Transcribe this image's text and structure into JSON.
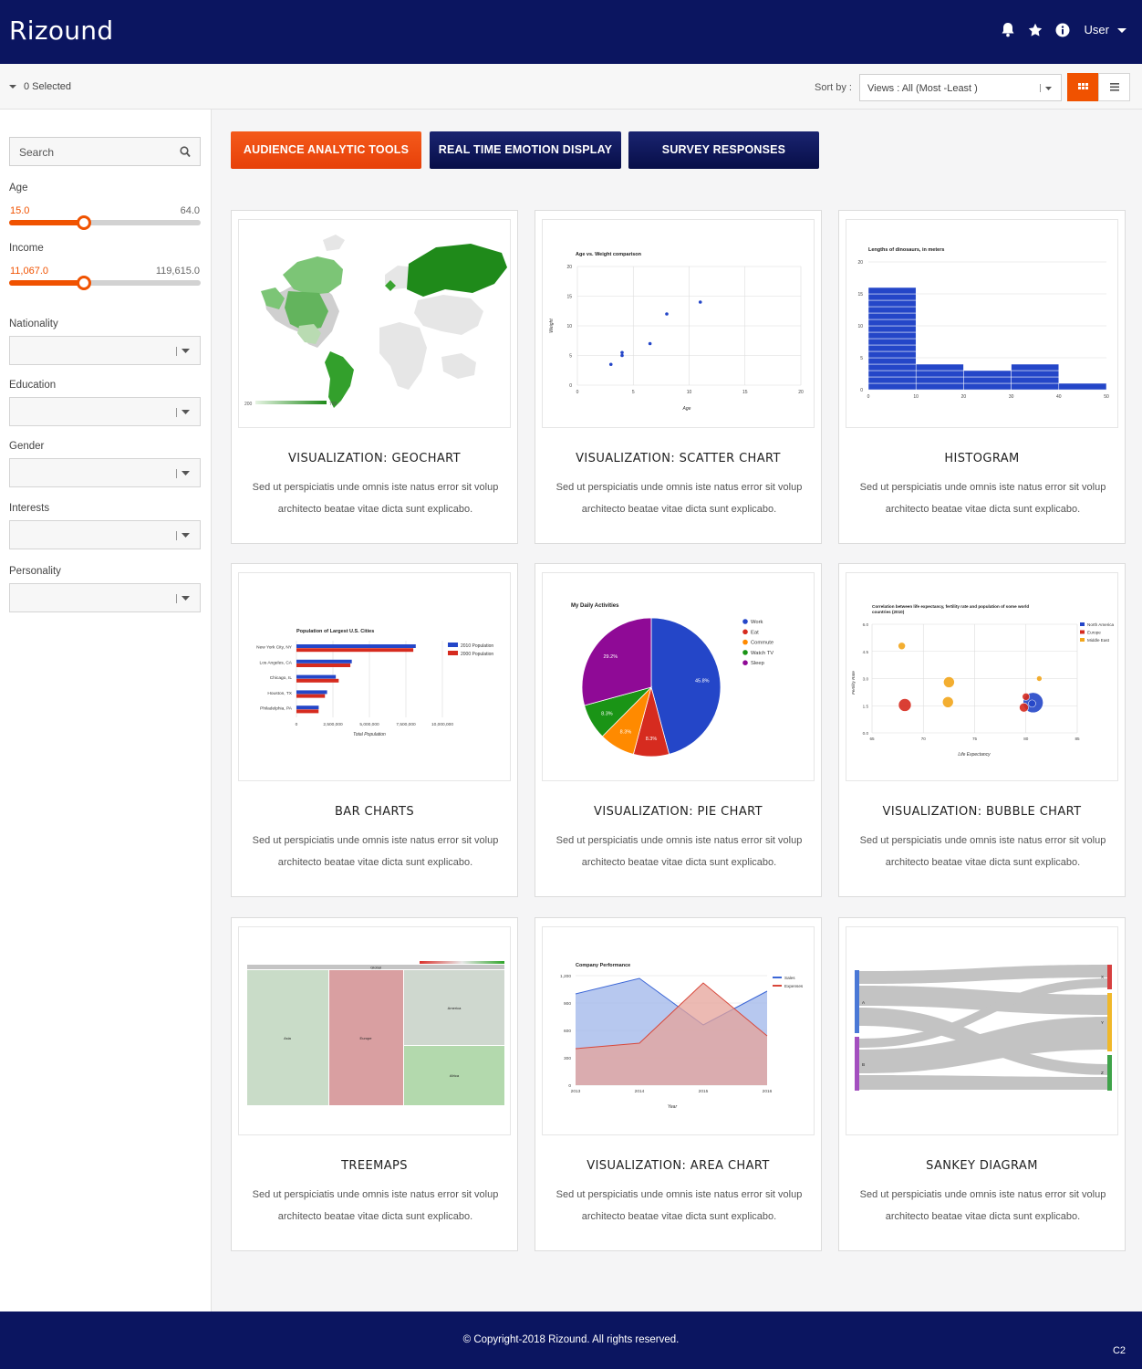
{
  "header": {
    "logo": "Rizound",
    "user_label": "User"
  },
  "toolbar": {
    "selected": "0 Selected",
    "sort_label": "Sort by :",
    "sort_value": "Views : All (Most -Least )"
  },
  "sidebar": {
    "search_placeholder": "Search",
    "age": {
      "label": "Age",
      "min": "15.0",
      "max": "64.0",
      "level": 0.39
    },
    "income": {
      "label": "Income",
      "min": "11,067.0",
      "max": "119,615.0",
      "level": 0.39
    },
    "filters": [
      {
        "label": "Nationality"
      },
      {
        "label": "Education"
      },
      {
        "label": "Gender"
      },
      {
        "label": "Interests"
      },
      {
        "label": "Personality"
      }
    ]
  },
  "tabs": [
    {
      "label": "AUDIENCE ANALYTIC TOOLS"
    },
    {
      "label": "REAL TIME EMOTION DISPLAY"
    },
    {
      "label": "SURVEY RESPONSES"
    }
  ],
  "cards": [
    {
      "title": "VISUALIZATION: GEOCHART",
      "desc": "Sed ut perspiciatis unde omnis iste natus error sit volup architecto beatae vitae dicta sunt explicabo."
    },
    {
      "title": "VISUALIZATION: SCATTER CHART",
      "desc": "Sed ut perspiciatis unde omnis iste natus error sit volup architecto beatae vitae dicta sunt explicabo."
    },
    {
      "title": "HISTOGRAM",
      "desc": "Sed ut perspiciatis unde omnis iste natus error sit volup architecto beatae vitae dicta sunt explicabo."
    },
    {
      "title": "BAR CHARTS",
      "desc": "Sed ut perspiciatis unde omnis iste natus error sit volup architecto beatae vitae dicta sunt explicabo."
    },
    {
      "title": "VISUALIZATION: PIE CHART",
      "desc": "Sed ut perspiciatis unde omnis iste natus error sit volup architecto beatae vitae dicta sunt explicabo."
    },
    {
      "title": "VISUALIZATION: BUBBLE CHART",
      "desc": "Sed ut perspiciatis unde omnis iste natus error sit volup architecto beatae vitae dicta sunt explicabo."
    },
    {
      "title": "TREEMAPS",
      "desc": "Sed ut perspiciatis unde omnis iste natus error sit volup architecto beatae vitae dicta sunt explicabo."
    },
    {
      "title": "VISUALIZATION: AREA CHART",
      "desc": "Sed ut perspiciatis unde omnis iste natus error sit volup architecto beatae vitae dicta sunt explicabo."
    },
    {
      "title": "SANKEY DIAGRAM",
      "desc": "Sed ut perspiciatis unde omnis iste natus error sit volup architecto beatae vitae dicta sunt explicabo."
    }
  ],
  "thumbs": {
    "geo": {
      "legend_min": "200",
      "legend_max": "700"
    },
    "scatter": {
      "title": "Age vs. Weight comparison",
      "xlabel": "Age",
      "ylabel": "Weight",
      "xticks": [
        "0",
        "5",
        "10",
        "15",
        "20"
      ],
      "yticks": [
        "0",
        "5",
        "10",
        "15",
        "20"
      ],
      "xlim": [
        0,
        20
      ],
      "ylim": [
        0,
        20
      ],
      "points": [
        [
          3,
          3.5
        ],
        [
          4,
          5
        ],
        [
          4,
          5.5
        ],
        [
          6.5,
          7
        ],
        [
          8,
          12
        ],
        [
          11,
          14
        ]
      ]
    },
    "hist": {
      "title": "Lengths of dinosaurs, in meters",
      "xticks": [
        "0",
        "10",
        "20",
        "30",
        "40",
        "50"
      ],
      "yticks": [
        "0",
        "5",
        "10",
        "15",
        "20"
      ],
      "bins": [
        [
          0,
          10,
          16
        ],
        [
          10,
          20,
          4
        ],
        [
          20,
          30,
          3
        ],
        [
          30,
          40,
          4
        ],
        [
          40,
          50,
          1
        ]
      ]
    },
    "bar": {
      "title": "Population of Largest U.S. Cities",
      "xlabel": "Total Population",
      "categories": [
        "New York City, NY",
        "Los Angeles, CA",
        "Chicago, IL",
        "Houston, TX",
        "Philadelphia, PA"
      ],
      "xticks": [
        "0",
        "2,500,000",
        "5,000,000",
        "7,500,000",
        "10,000,000"
      ],
      "xmax": 10000000,
      "series": [
        {
          "name": "2010 Population",
          "values": [
            8175000,
            3792000,
            2695000,
            2099000,
            1526000
          ]
        },
        {
          "name": "2000 Population",
          "values": [
            8008000,
            3694000,
            2896000,
            1953000,
            1517000
          ]
        }
      ]
    },
    "pie": {
      "title": "My Daily Activities",
      "slices": [
        {
          "label": "Work",
          "value": 45.8,
          "text": "45.8%"
        },
        {
          "label": "Eat",
          "value": 8.3,
          "text": "8.3%"
        },
        {
          "label": "Commute",
          "value": 8.3,
          "text": "8.3%"
        },
        {
          "label": "Watch TV",
          "value": 8.3,
          "text": "8.3%"
        },
        {
          "label": "Sleep",
          "value": 29.2,
          "text": "29.2%"
        }
      ]
    },
    "bubble": {
      "title1": "Correlation between life expectancy, fertility rate and population of some world",
      "title2": "countries (2010)",
      "xlabel": "Life Expectancy",
      "ylabel": "Fertility Rate",
      "xticks": [
        "65",
        "70",
        "75",
        "80",
        "85"
      ],
      "yticks": [
        "0.0",
        "1.5",
        "3.0",
        "4.5",
        "6.0"
      ],
      "legend": [
        "North America",
        "Europe",
        "Middle East"
      ],
      "bubbles": [
        {
          "label": "",
          "x": 80.7,
          "y": 1.67,
          "r": 11,
          "region": 0
        },
        {
          "label": "",
          "x": 68.2,
          "y": 1.54,
          "r": 7,
          "region": 1
        },
        {
          "label": "",
          "x": 80.0,
          "y": 2.0,
          "r": 4,
          "region": 1
        },
        {
          "label": "",
          "x": 79.8,
          "y": 1.4,
          "r": 5,
          "region": 1
        },
        {
          "label": "",
          "x": 81.3,
          "y": 3.0,
          "r": 3,
          "region": 2
        },
        {
          "label": "",
          "x": 67.9,
          "y": 4.8,
          "r": 4,
          "region": 2
        },
        {
          "label": "",
          "x": 72.5,
          "y": 2.8,
          "r": 6,
          "region": 2
        },
        {
          "label": "",
          "x": 72.4,
          "y": 1.7,
          "r": 6,
          "region": 2
        },
        {
          "label": "",
          "x": 80.6,
          "y": 1.62,
          "r": 4,
          "region": 0
        }
      ]
    },
    "treemap": {
      "header": "Global",
      "regions": [
        "Asia",
        "Europe",
        "America",
        "Africa"
      ]
    },
    "area": {
      "title": "Company Performance",
      "xlabel": "Year",
      "categories": [
        "2013",
        "2014",
        "2015",
        "2016"
      ],
      "yticks": [
        "0",
        "300",
        "600",
        "900",
        "1,200"
      ],
      "ymax": 1200,
      "series": [
        {
          "name": "Sales",
          "values": [
            1000,
            1170,
            660,
            1030
          ]
        },
        {
          "name": "Expenses",
          "values": [
            400,
            460,
            1120,
            540
          ]
        }
      ]
    },
    "sankey": {
      "sources": [
        "A",
        "B"
      ],
      "targets": [
        "X",
        "Y",
        "Z"
      ]
    }
  },
  "footer": {
    "copyright": "© Copyright-2018 Rizound. All rights reserved.",
    "code": "C2"
  },
  "colors": {
    "navy": "#0b1560",
    "accent": "#f05200"
  }
}
